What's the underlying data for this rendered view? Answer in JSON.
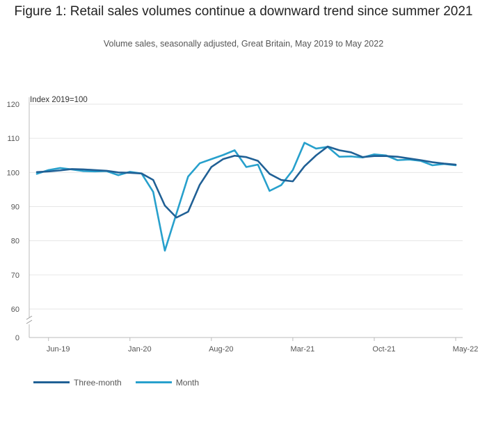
{
  "chart_data": {
    "type": "line",
    "title": "Figure 1: Retail sales volumes continue a downward trend since summer 2021",
    "subtitle": "Volume sales, seasonally adjusted, Great Britain, May 2019 to May 2022",
    "ylabel": "Index 2019=100",
    "ylim": [
      60,
      120
    ],
    "y_ticks": [
      0,
      60,
      70,
      80,
      90,
      100,
      110,
      120
    ],
    "y_axis_break": "between 0 and 60",
    "x_tick_labels": [
      "Jun-19",
      "Jan-20",
      "Aug-20",
      "Mar-21",
      "Oct-21",
      "May-22"
    ],
    "x": [
      "May-19",
      "Jun-19",
      "Jul-19",
      "Aug-19",
      "Sep-19",
      "Oct-19",
      "Nov-19",
      "Dec-19",
      "Jan-20",
      "Feb-20",
      "Mar-20",
      "Apr-20",
      "May-20",
      "Jun-20",
      "Jul-20",
      "Aug-20",
      "Sep-20",
      "Oct-20",
      "Nov-20",
      "Dec-20",
      "Jan-21",
      "Feb-21",
      "Mar-21",
      "Apr-21",
      "May-21",
      "Jun-21",
      "Jul-21",
      "Aug-21",
      "Sep-21",
      "Oct-21",
      "Nov-21",
      "Dec-21",
      "Jan-22",
      "Feb-22",
      "Mar-22",
      "Apr-22",
      "May-22"
    ],
    "series": [
      {
        "name": "Three-month",
        "color": "#206095",
        "values": [
          100.1,
          100.3,
          100.6,
          101.0,
          100.9,
          100.7,
          100.5,
          100.0,
          99.9,
          99.7,
          97.8,
          90.3,
          86.8,
          88.5,
          96.4,
          101.6,
          103.9,
          104.9,
          104.5,
          103.4,
          99.6,
          97.8,
          97.4,
          101.8,
          105.0,
          107.6,
          106.5,
          105.9,
          104.5,
          104.8,
          104.8,
          104.6,
          104.1,
          103.6,
          103.0,
          102.6,
          102.3
        ]
      },
      {
        "name": "Month",
        "color": "#27a0cc",
        "values": [
          99.6,
          100.7,
          101.3,
          100.9,
          100.4,
          100.3,
          100.4,
          99.2,
          100.2,
          99.7,
          94.3,
          77.1,
          88.0,
          98.8,
          102.7,
          103.9,
          105.1,
          106.5,
          101.6,
          102.3,
          94.6,
          96.3,
          100.7,
          108.7,
          107.0,
          107.5,
          104.6,
          104.7,
          104.4,
          105.3,
          105.0,
          103.6,
          103.8,
          103.4,
          102.1,
          102.5,
          102.1
        ]
      }
    ],
    "legend": "bottom-left",
    "grid": true
  }
}
